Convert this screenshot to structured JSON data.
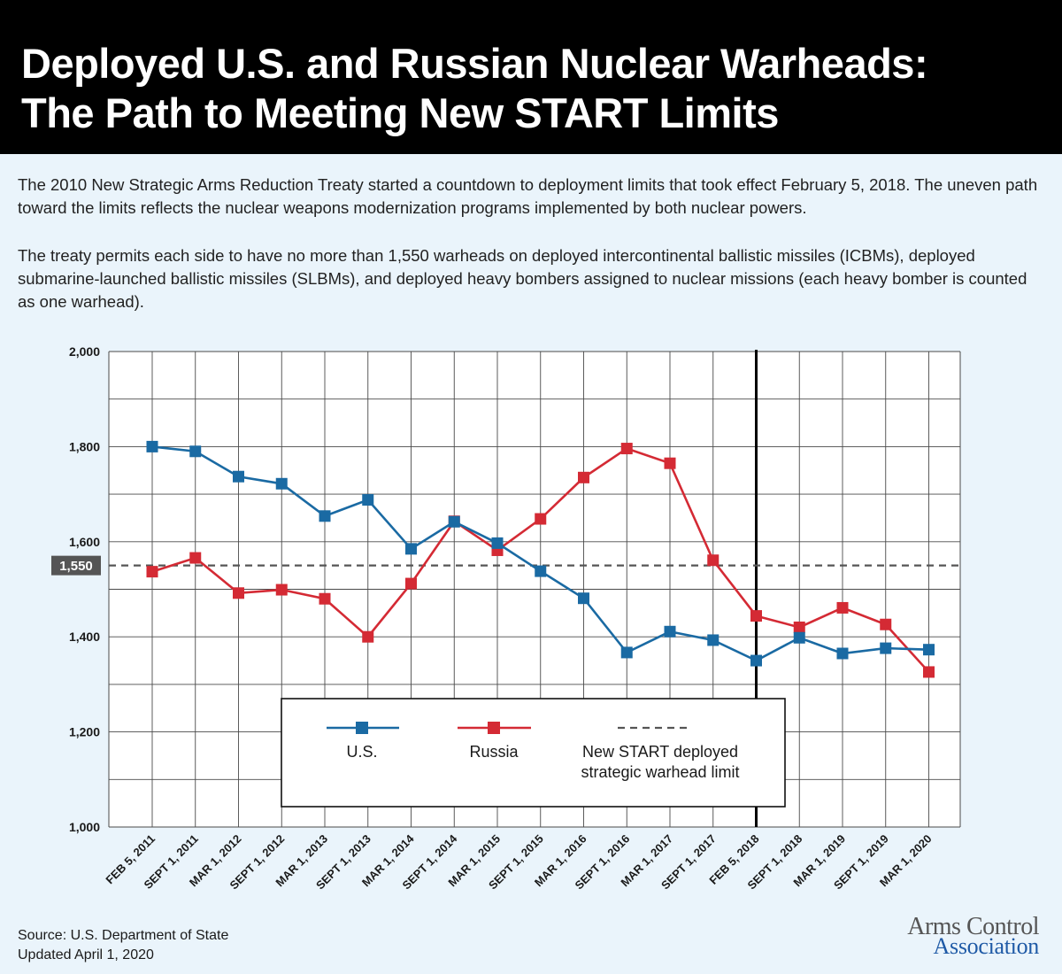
{
  "header": {
    "title_line1": "Deployed U.S. and Russian Nuclear Warheads:",
    "title_line2": "The Path to Meeting New START Limits"
  },
  "intro": {
    "paragraph1": "The 2010 New Strategic Arms Reduction Treaty started a countdown to deployment limits that took effect February 5, 2018. The uneven path toward the limits reflects the nuclear weapons modernization programs implemented by both nuclear powers.",
    "paragraph2": "The treaty permits each side to have no more than 1,550 warheads on deployed intercontinental ballistic missiles (ICBMs), deployed submarine-launched ballistic missiles (SLBMs), and deployed heavy bombers assigned to nuclear missions (each heavy bomber is counted as one warhead)."
  },
  "chart_data": {
    "type": "line",
    "title": "",
    "xlabel": "",
    "ylabel": "",
    "categories": [
      "FEB 5, 2011",
      "SEPT 1, 2011",
      "MAR 1, 2012",
      "SEPT 1, 2012",
      "MAR 1, 2013",
      "SEPT 1, 2013",
      "MAR 1, 2014",
      "SEPT 1, 2014",
      "MAR 1, 2015",
      "SEPT 1, 2015",
      "MAR 1, 2016",
      "SEPT 1, 2016",
      "MAR 1, 2017",
      "SEPT 1, 2017",
      "FEB 5, 2018",
      "SEPT 1, 2018",
      "MAR 1, 2019",
      "SEPT 1, 2019",
      "MAR 1, 2020"
    ],
    "series": [
      {
        "name": "U.S.",
        "color": "#1a6aa3",
        "values": [
          1800,
          1790,
          1737,
          1722,
          1654,
          1688,
          1585,
          1642,
          1597,
          1538,
          1481,
          1367,
          1411,
          1393,
          1350,
          1398,
          1365,
          1376,
          1373
        ]
      },
      {
        "name": "Russia",
        "color": "#d42a34",
        "values": [
          1537,
          1566,
          1492,
          1499,
          1480,
          1400,
          1512,
          1643,
          1582,
          1648,
          1735,
          1796,
          1765,
          1561,
          1444,
          1420,
          1461,
          1426,
          1326
        ]
      }
    ],
    "ylim": [
      1000,
      2000
    ],
    "yticks": [
      1000,
      1200,
      1400,
      1600,
      1800,
      2000
    ],
    "ytick_labels": [
      "1,000",
      "1,200",
      "1,400",
      "1,600",
      "1,800",
      "2,000"
    ],
    "reference_line": {
      "value": 1550,
      "label": "1,550",
      "name": "New START deployed strategic warhead limit",
      "color": "#555555"
    },
    "vertical_marker": {
      "category": "FEB 5, 2018"
    },
    "grid": true,
    "legend": {
      "placement": "bottom-center",
      "entries": [
        "U.S.",
        "Russia"
      ],
      "limit_line1": "New START deployed",
      "limit_line2": "strategic warhead limit"
    }
  },
  "footer": {
    "source": "Source: U.S. Department of State",
    "updated": "Updated April 1, 2020"
  },
  "logo": {
    "line1": "Arms Control",
    "line2": "Association"
  }
}
